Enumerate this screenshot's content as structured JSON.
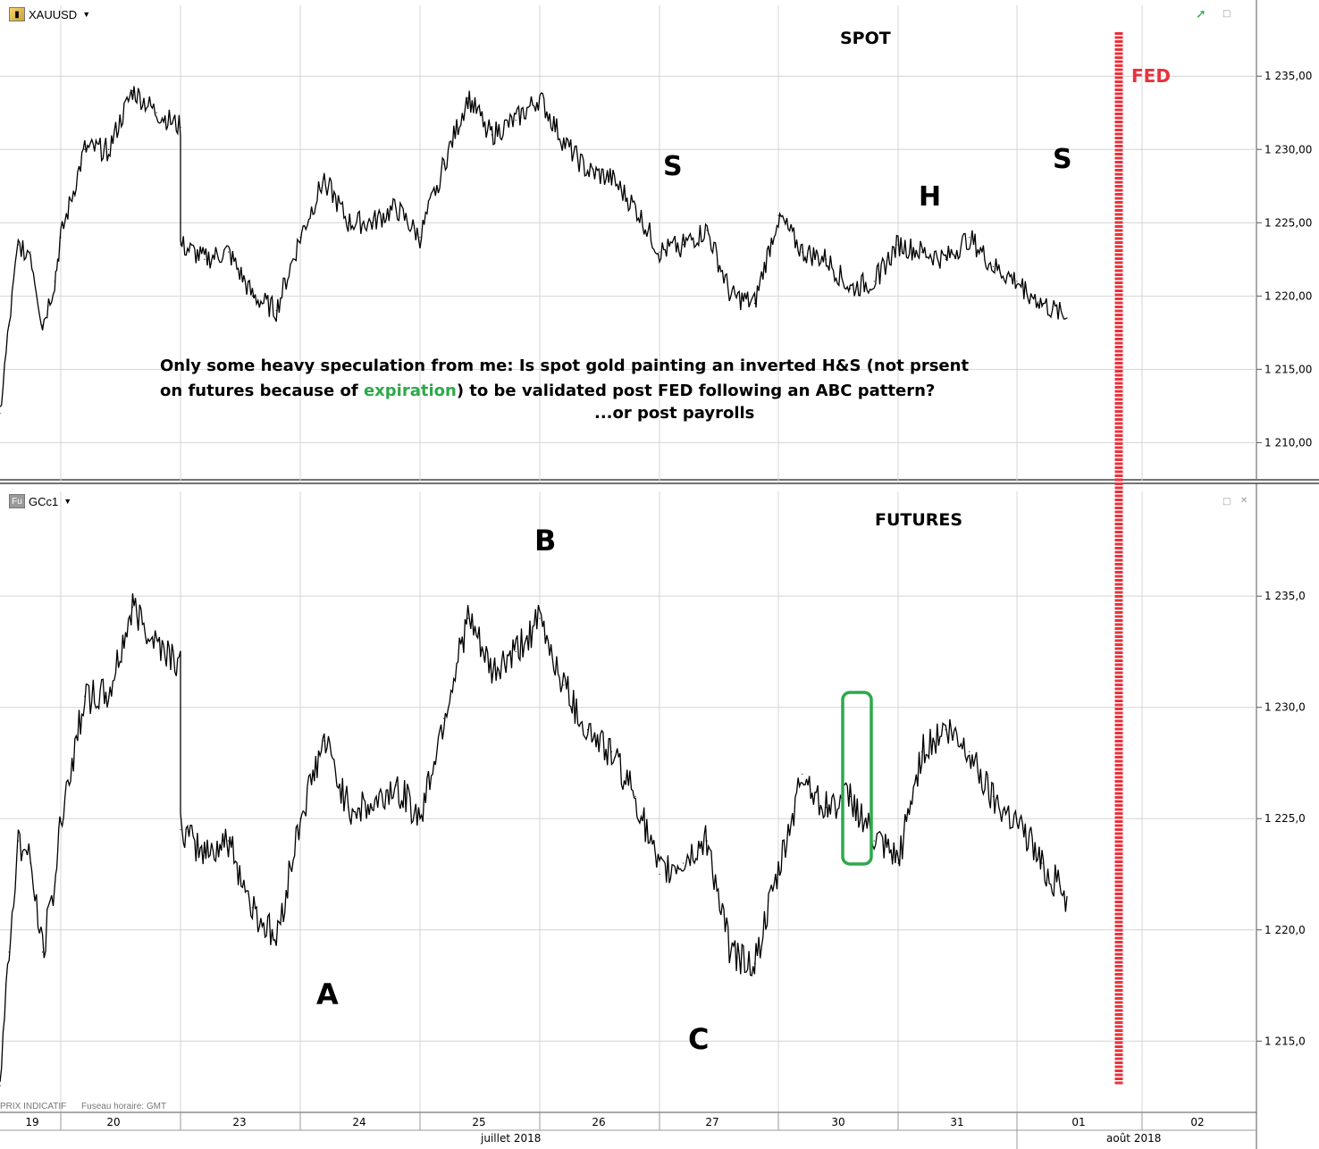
{
  "top_panel": {
    "symbol": "XAUUSD",
    "icon": "gold-bar-icon",
    "title": "SPOT",
    "fed_label": "FED",
    "pattern_labels": {
      "s1": "S",
      "h": "H",
      "s2": "S"
    },
    "note": {
      "part1": "Only some heavy speculation from me: Is spot gold painting an inverted H&S (not prsent on futures because of ",
      "highlight": "expiration",
      "part2": ") to be validated post FED following an ABC pattern?",
      "line3": "...or post payrolls"
    },
    "y_ticks": [
      "1 235,00",
      "1 230,00",
      "1 225,00",
      "1 220,00",
      "1 215,00",
      "1 210,00"
    ]
  },
  "bottom_panel": {
    "symbol": "GCc1",
    "icon_label": "Fu",
    "title": "FUTURES",
    "pattern_labels": {
      "a": "A",
      "b": "B",
      "c": "C"
    },
    "y_ticks": [
      "1 235,0",
      "1 230,0",
      "1 225,0",
      "1 220,0",
      "1 215,0"
    ]
  },
  "footer": {
    "price_note": "PRIX INDICATIF",
    "tz_note": "Fuseau horaire: GMT",
    "day_labels": [
      "19",
      "20",
      "23",
      "24",
      "25",
      "26",
      "27",
      "30",
      "31",
      "01",
      "02"
    ],
    "month_labels": [
      "juillet 2018",
      "août 2018"
    ]
  },
  "colors": {
    "fed_line": "#e8323c",
    "highlight_box": "#2ea84a",
    "price_line": "#000000",
    "grid": "#d4d4d4"
  },
  "chart_data": [
    {
      "type": "line",
      "title": "SPOT",
      "series": [
        {
          "name": "XAUUSD",
          "x": [
            19.0,
            19.15,
            19.3,
            19.5,
            19.7,
            19.9,
            20.0,
            20.2,
            20.4,
            20.6,
            20.8,
            21.0,
            23.0,
            23.2,
            23.4,
            23.6,
            23.8,
            24.0,
            24.2,
            24.4,
            24.6,
            24.8,
            25.0,
            25.2,
            25.4,
            25.6,
            25.8,
            26.0,
            26.2,
            26.4,
            26.6,
            26.8,
            27.0,
            27.2,
            27.4,
            27.6,
            27.8,
            30.0,
            30.2,
            30.4,
            30.6,
            30.8,
            31.0,
            31.2,
            31.4,
            31.6,
            31.8,
            32.0,
            32.2,
            32.4
          ],
          "values": [
            1212.0,
            1218.0,
            1223.5,
            1223.0,
            1218.0,
            1221.0,
            1224.0,
            1230.0,
            1230.0,
            1234.0,
            1232.5,
            1231.5,
            1223.5,
            1222.5,
            1223.0,
            1220.0,
            1219.0,
            1224.0,
            1228.0,
            1225.0,
            1225.0,
            1226.0,
            1224.0,
            1229.0,
            1233.5,
            1231.0,
            1232.0,
            1233.5,
            1230.5,
            1228.5,
            1228.0,
            1226.0,
            1223.0,
            1223.5,
            1224.5,
            1220.0,
            1219.5,
            1225.5,
            1223.0,
            1222.5,
            1220.5,
            1221.0,
            1223.5,
            1223.0,
            1222.5,
            1224.0,
            1222.0,
            1221.0,
            1219.5,
            1218.5
          ]
        }
      ],
      "ylim": [
        1208.5,
        1238.0
      ],
      "xlim": [
        18.7,
        33.25
      ],
      "yticks": [
        1235,
        1230,
        1225,
        1220,
        1215,
        1210
      ]
    },
    {
      "type": "line",
      "title": "FUTURES",
      "series": [
        {
          "name": "GCc1",
          "x": [
            19.0,
            19.15,
            19.3,
            19.5,
            19.7,
            19.9,
            20.0,
            20.2,
            20.4,
            20.6,
            20.8,
            21.0,
            23.0,
            23.2,
            23.4,
            23.6,
            23.8,
            24.0,
            24.2,
            24.4,
            24.6,
            24.8,
            25.0,
            25.2,
            25.4,
            25.6,
            25.8,
            26.0,
            26.2,
            26.4,
            26.6,
            26.8,
            27.0,
            27.2,
            27.4,
            27.6,
            27.8,
            30.0,
            30.2,
            30.4,
            30.6,
            30.8,
            31.0,
            31.2,
            31.4,
            31.6,
            31.8,
            32.0,
            32.2,
            32.4
          ],
          "values": [
            1213.0,
            1219.0,
            1224.0,
            1223.0,
            1219.0,
            1222.0,
            1225.0,
            1230.5,
            1230.5,
            1234.5,
            1233.0,
            1232.0,
            1224.5,
            1223.5,
            1224.0,
            1221.0,
            1219.5,
            1225.0,
            1228.5,
            1225.5,
            1225.5,
            1226.5,
            1225.0,
            1229.5,
            1234.0,
            1231.5,
            1232.5,
            1234.0,
            1231.0,
            1229.0,
            1228.0,
            1226.0,
            1222.5,
            1223.0,
            1224.0,
            1219.0,
            1218.5,
            1222.5,
            1227.0,
            1225.5,
            1226.0,
            1224.0,
            1223.0,
            1228.0,
            1229.0,
            1228.0,
            1226.0,
            1225.0,
            1223.0,
            1221.5
          ]
        }
      ],
      "ylim": [
        1212.0,
        1238.5
      ],
      "xlim": [
        18.7,
        33.25
      ],
      "yticks": [
        1235,
        1230,
        1225,
        1220,
        1215
      ]
    }
  ]
}
